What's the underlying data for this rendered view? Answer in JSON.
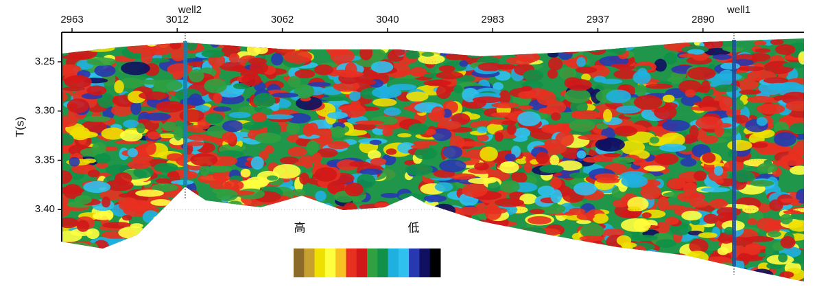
{
  "chart_data": {
    "type": "seismic-section",
    "categories": [
      "2963",
      "3012",
      "3062",
      "3040",
      "2983",
      "2937",
      "2890"
    ],
    "wells": [
      "well2",
      "well1"
    ],
    "y_label": "T(s)",
    "ylim": [
      3.22,
      3.48
    ],
    "yticks": [
      3.25,
      {
        "value": 3.3,
        "label": "3.30"
      },
      3.35,
      {
        "value": 3.4,
        "label": "3.40"
      }
    ],
    "colorbar": {
      "high_label": "高",
      "low_label": "低",
      "colors": [
        "#8b6a2a",
        "#c8a030",
        "#f0e000",
        "#ffff40",
        "#f8c020",
        "#e83020",
        "#d01818",
        "#30a040",
        "#109048",
        "#20b0e0",
        "#30c0f0",
        "#2838b0",
        "#101060",
        "#000000"
      ]
    }
  }
}
